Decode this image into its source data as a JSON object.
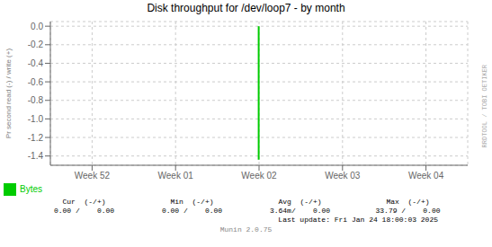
{
  "chart_data": {
    "type": "bar",
    "title": "Disk throughput for /dev/loop7 - by month",
    "ylabel": "Pr second read (-) / write (+)",
    "categories": [
      "Week 52",
      "Week 01",
      "Week 02",
      "Week 03",
      "Week 04"
    ],
    "series": [
      {
        "name": "Bytes",
        "color": "#00cc00",
        "values": [
          null,
          null,
          -1.44,
          null,
          null
        ]
      }
    ],
    "ylim": [
      -1.5,
      0.05
    ],
    "yticks": [
      {
        "value": 0.0,
        "label": "0.0"
      },
      {
        "value": -0.2,
        "label": "-0.2"
      },
      {
        "value": -0.4,
        "label": "-0.4"
      },
      {
        "value": -0.6,
        "label": "-0.6"
      },
      {
        "value": -0.8,
        "label": "-0.8"
      },
      {
        "value": -1.0,
        "label": "-1.0"
      },
      {
        "value": -1.2,
        "label": "-1.2"
      },
      {
        "value": -1.4,
        "label": "-1.4"
      }
    ],
    "grid": true,
    "legend": "lower left",
    "annotations": [
      "RRDTOOL / TOBI OETIKER",
      "Cur  (-/+)",
      "Min  (-/+)",
      "Avg  (-/+)",
      "Max  (-/+)",
      "0.00 /    0.00",
      "0.00 /    0.00",
      "3.64m/    0.00",
      "33.79 /    0.00",
      "Last update: Fri Jan 24 18:00:03 2025",
      "Munin 2.0.75"
    ]
  }
}
